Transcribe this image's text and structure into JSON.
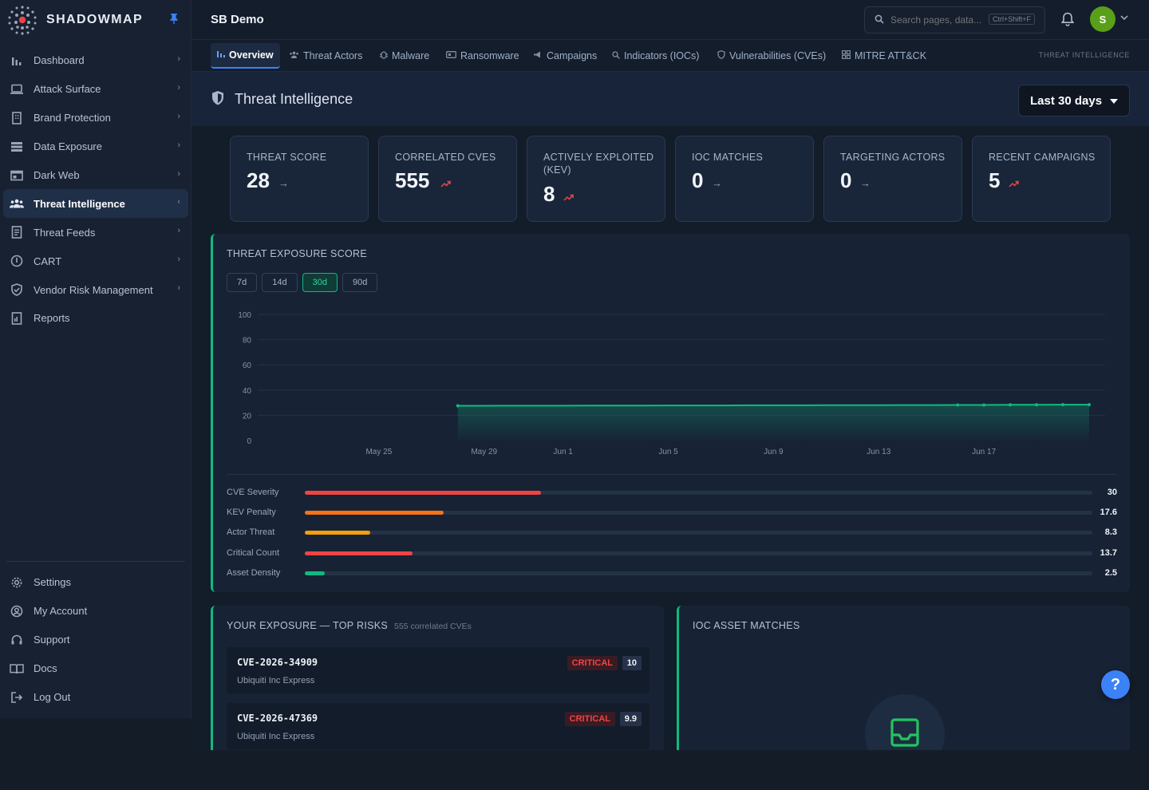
{
  "app": {
    "brand": "SHADOWMAP",
    "org": "SB Demo"
  },
  "sidebar": {
    "items": [
      {
        "label": "Dashboard",
        "icon": "bar-chart-icon"
      },
      {
        "label": "Attack Surface",
        "icon": "laptop-icon"
      },
      {
        "label": "Brand Protection",
        "icon": "building-icon"
      },
      {
        "label": "Data Exposure",
        "icon": "database-icon"
      },
      {
        "label": "Dark Web",
        "icon": "browser-icon"
      },
      {
        "label": "Threat Intelligence",
        "icon": "users-icon",
        "active": true
      },
      {
        "label": "Threat Feeds",
        "icon": "document-icon"
      },
      {
        "label": "CART",
        "icon": "info-circle-icon"
      },
      {
        "label": "Vendor Risk Management",
        "icon": "shield-check-icon"
      },
      {
        "label": "Reports",
        "icon": "report-icon"
      }
    ],
    "bottom": [
      {
        "label": "Settings",
        "icon": "gear-icon"
      },
      {
        "label": "My Account",
        "icon": "user-circle-icon"
      },
      {
        "label": "Support",
        "icon": "headset-icon"
      },
      {
        "label": "Docs",
        "icon": "book-icon"
      },
      {
        "label": "Log Out",
        "icon": "logout-icon"
      }
    ]
  },
  "header": {
    "search_placeholder": "Search pages, data...",
    "shortcut": "Ctrl+Shift+F",
    "avatar_initial": "S"
  },
  "tabs": {
    "items": [
      {
        "label": "Overview",
        "icon": "bar-chart-icon",
        "active": true
      },
      {
        "label": "Threat Actors",
        "icon": "users-icon"
      },
      {
        "label": "Malware",
        "icon": "bug-icon"
      },
      {
        "label": "Ransomware",
        "icon": "lock-card-icon"
      },
      {
        "label": "Campaigns",
        "icon": "campaign-icon"
      },
      {
        "label": "Indicators (IOCs)",
        "icon": "search-icon"
      },
      {
        "label": "Vulnerabilities (CVEs)",
        "icon": "shield-icon"
      },
      {
        "label": "MITRE ATT&CK",
        "icon": "grid-icon"
      }
    ],
    "section_label": "THREAT INTELLIGENCE"
  },
  "page": {
    "title": "Threat Intelligence",
    "range_label": "Last 30 days"
  },
  "stats": [
    {
      "label": "THREAT SCORE",
      "value": "28",
      "trend": "flat"
    },
    {
      "label": "CORRELATED CVES",
      "value": "555",
      "trend": "up"
    },
    {
      "label": "ACTIVELY EXPLOITED (KEV)",
      "value": "8",
      "trend": "up"
    },
    {
      "label": "IOC MATCHES",
      "value": "0",
      "trend": "flat"
    },
    {
      "label": "TARGETING ACTORS",
      "value": "0",
      "trend": "flat"
    },
    {
      "label": "RECENT CAMPAIGNS",
      "value": "5",
      "trend": "up"
    }
  ],
  "exposure": {
    "title": "THREAT EXPOSURE SCORE",
    "ranges": [
      "7d",
      "14d",
      "30d",
      "90d"
    ],
    "active_range": "30d",
    "factors": [
      {
        "label": "CVE Severity",
        "value": "30",
        "pct": 30,
        "color": "#ef4444"
      },
      {
        "label": "KEV Penalty",
        "value": "17.6",
        "pct": 17.6,
        "color": "#f97316"
      },
      {
        "label": "Actor Threat",
        "value": "8.3",
        "pct": 8.3,
        "color": "#f59e0b"
      },
      {
        "label": "Critical Count",
        "value": "13.7",
        "pct": 13.7,
        "color": "#ef4444"
      },
      {
        "label": "Asset Density",
        "value": "2.5",
        "pct": 2.5,
        "color": "#10b981"
      }
    ]
  },
  "chart_data": {
    "type": "area",
    "ylim": [
      0,
      100
    ],
    "yticks": [
      "100",
      "80",
      "60",
      "40",
      "20",
      "0"
    ],
    "xticks": [
      "May 25",
      "May 29",
      "Jun 1",
      "Jun 5",
      "Jun 9",
      "Jun 13",
      "Jun 17"
    ],
    "series": [
      {
        "color": "#10b981",
        "x": [
          "May 28",
          "May 29",
          "May 30",
          "May 31",
          "Jun 1",
          "Jun 2",
          "Jun 3",
          "Jun 4",
          "Jun 5",
          "Jun 6",
          "Jun 7",
          "Jun 8",
          "Jun 9",
          "Jun 10",
          "Jun 11",
          "Jun 12",
          "Jun 13",
          "Jun 14",
          "Jun 15",
          "Jun 16",
          "Jun 17",
          "Jun 18",
          "Jun 19",
          "Jun 20",
          "Jun 21"
        ],
        "values": [
          27.5,
          27.5,
          27.6,
          27.6,
          27.6,
          27.7,
          27.7,
          27.7,
          27.8,
          27.8,
          27.8,
          27.9,
          27.9,
          27.9,
          28.0,
          28.0,
          28.0,
          28.1,
          28.1,
          28.2,
          28.2,
          28.3,
          28.3,
          28.4,
          28.4
        ],
        "markers": [
          "Jun 16",
          "Jun 17",
          "Jun 18",
          "Jun 19",
          "Jun 20",
          "Jun 21",
          "May 28"
        ]
      }
    ]
  },
  "top_risks": {
    "title": "YOUR EXPOSURE — TOP RISKS",
    "subtitle": "555 correlated CVEs",
    "items": [
      {
        "id": "CVE-2026-34909",
        "vendor": "Ubiquiti Inc Express",
        "severity": "CRITICAL",
        "score": "10"
      },
      {
        "id": "CVE-2026-47369",
        "vendor": "Ubiquiti Inc Express",
        "severity": "CRITICAL",
        "score": "9.9"
      }
    ]
  },
  "ioc_assets": {
    "title": "IOC ASSET MATCHES"
  },
  "help_label": "?"
}
